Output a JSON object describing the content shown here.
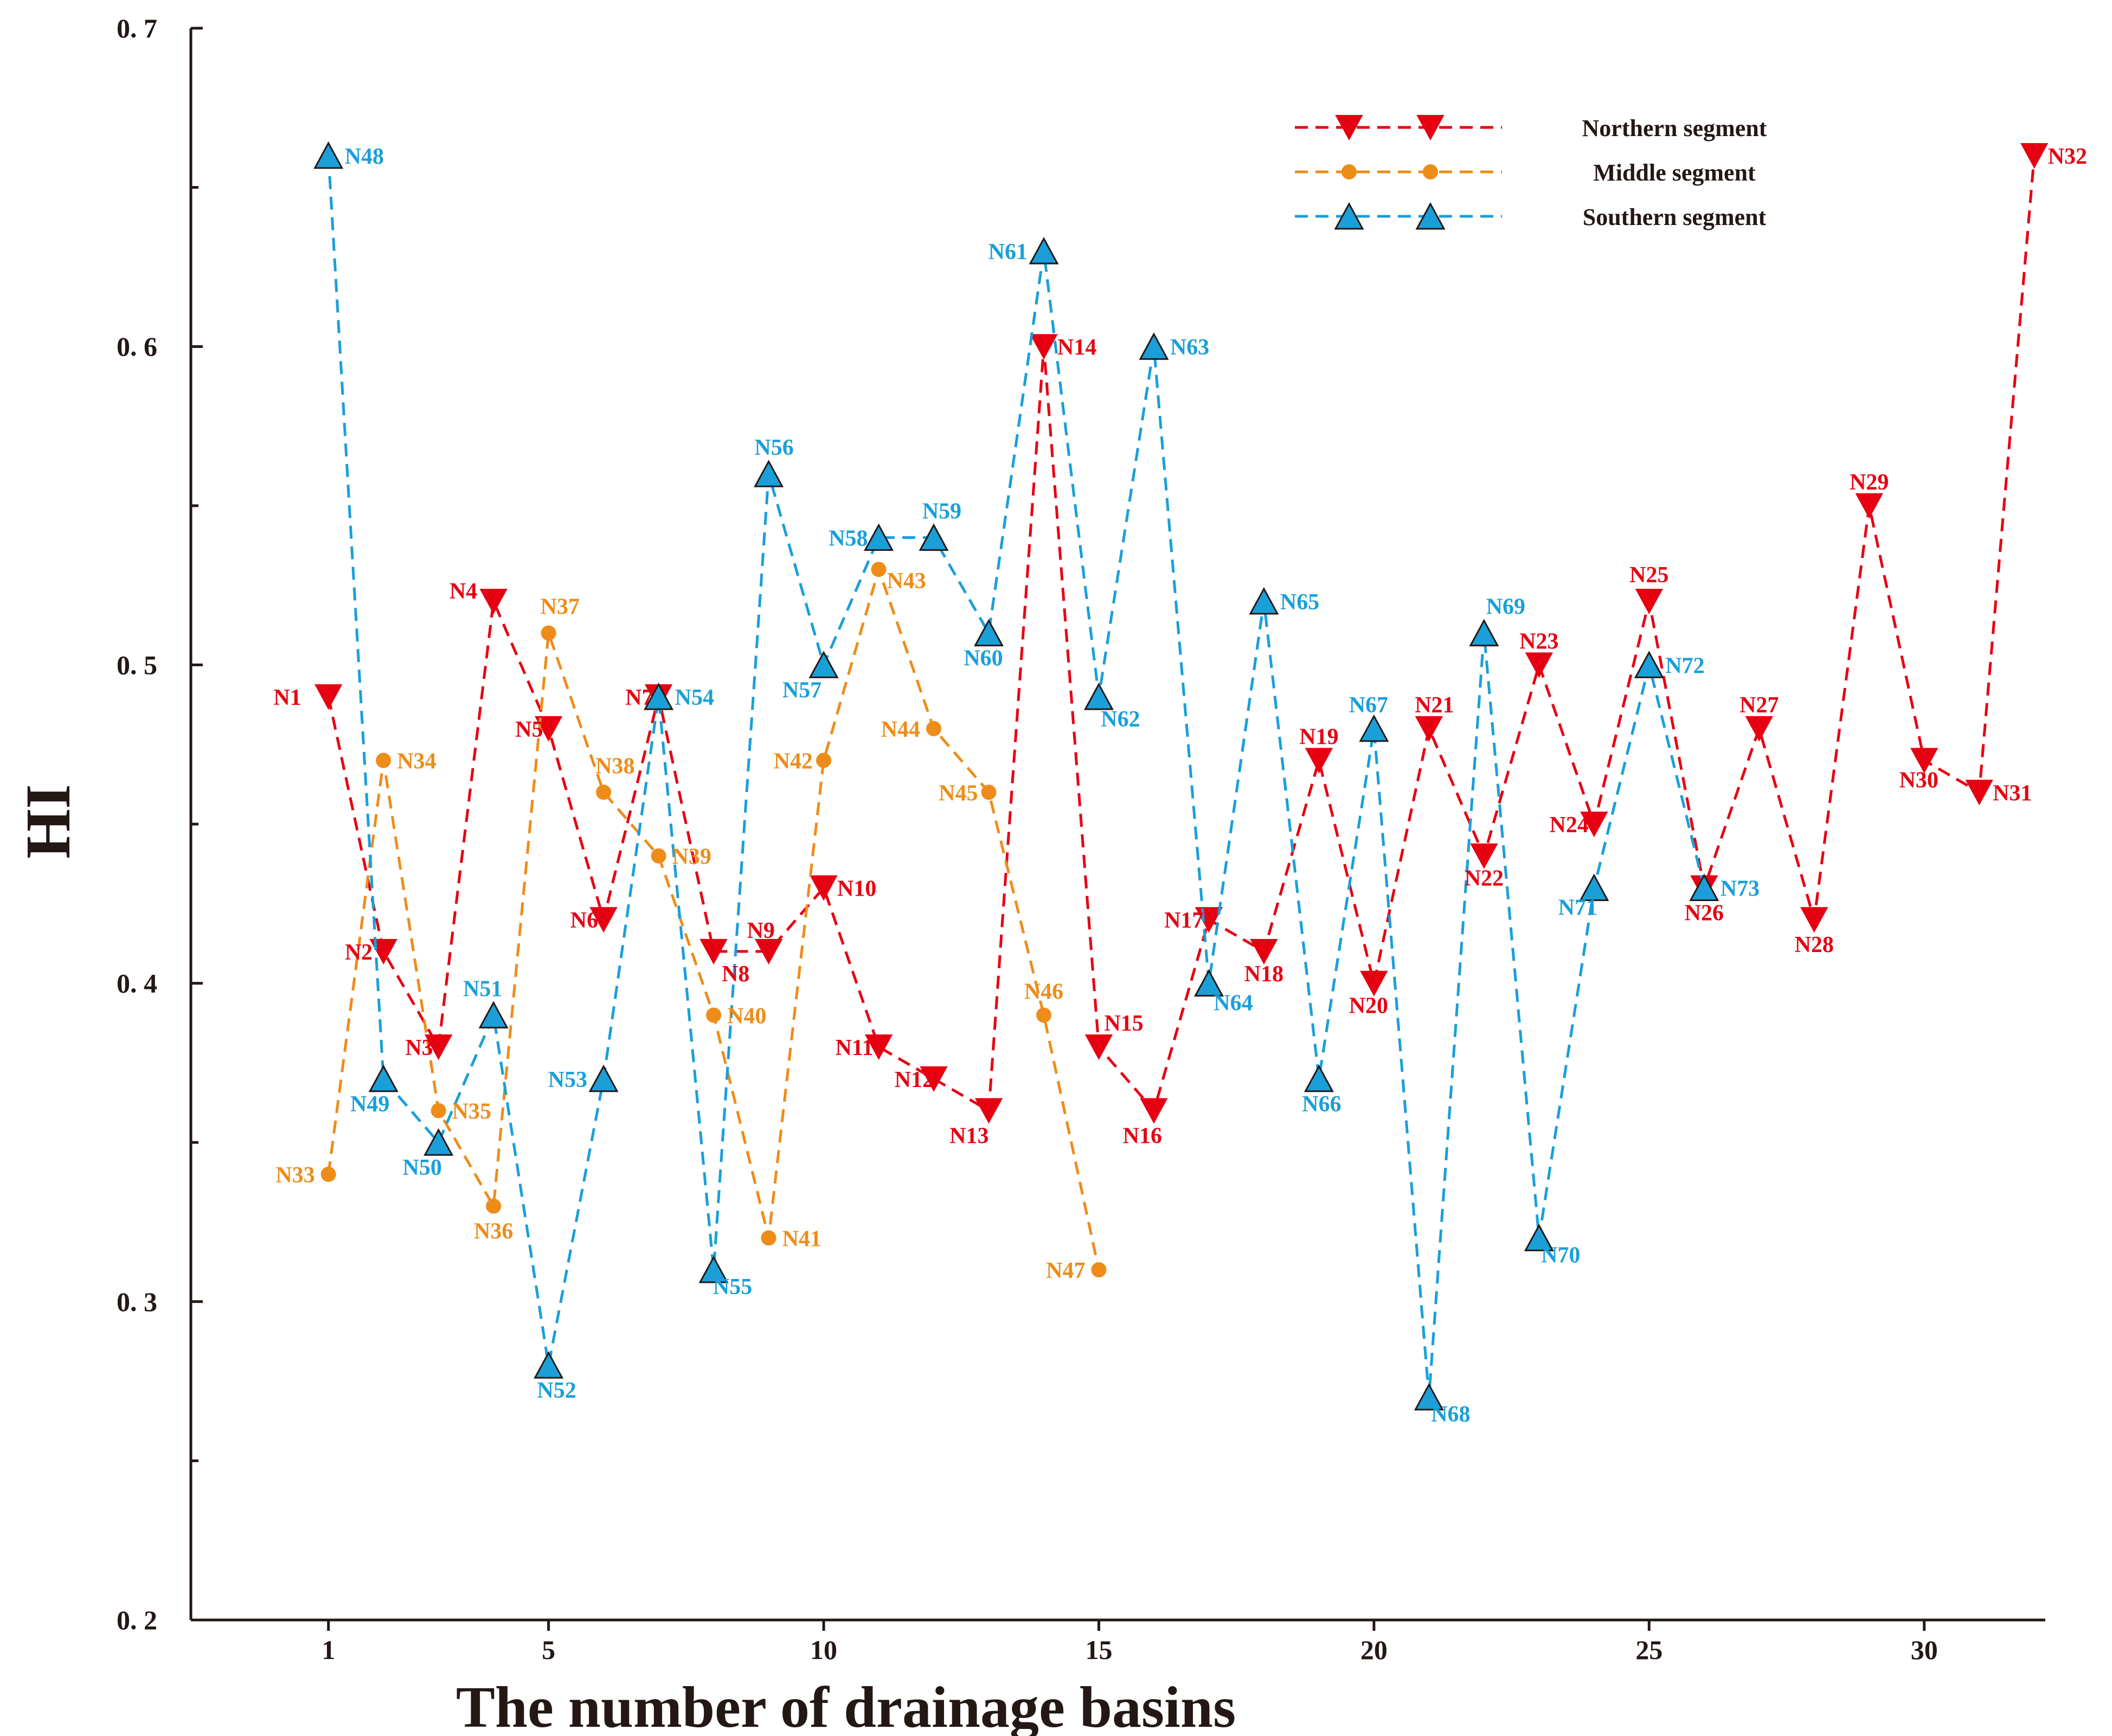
{
  "chart_data": {
    "type": "line",
    "title": "",
    "xlabel": "The number of drainage basins",
    "ylabel": "HI",
    "xlim": [
      -1.5,
      32.2
    ],
    "ylim": [
      0.2,
      0.7
    ],
    "x_ticks": [
      1,
      5,
      10,
      15,
      20,
      25,
      30
    ],
    "x_tick_labels": [
      "1",
      "5",
      "10",
      "15",
      "20",
      "25",
      "30"
    ],
    "y_ticks": [
      0.2,
      0.3,
      0.4,
      0.5,
      0.6,
      0.7
    ],
    "y_tick_labels": [
      "0. 2",
      "0. 3",
      "0. 4",
      "0. 5",
      "0. 6",
      "0. 7"
    ],
    "legend_position": "top-right",
    "series": [
      {
        "name": "Northern segment",
        "color": "#e60012",
        "marker": "triangle-down",
        "points": [
          {
            "label": "N1",
            "x": 1,
            "y": 0.49
          },
          {
            "label": "N2",
            "x": 2,
            "y": 0.41
          },
          {
            "label": "N3",
            "x": 3,
            "y": 0.38
          },
          {
            "label": "N4",
            "x": 4,
            "y": 0.52
          },
          {
            "label": "N5",
            "x": 5,
            "y": 0.48
          },
          {
            "label": "N6",
            "x": 6,
            "y": 0.42
          },
          {
            "label": "N7",
            "x": 7,
            "y": 0.49
          },
          {
            "label": "N8",
            "x": 8,
            "y": 0.41
          },
          {
            "label": "N9",
            "x": 9,
            "y": 0.41
          },
          {
            "label": "N10",
            "x": 10,
            "y": 0.43
          },
          {
            "label": "N11",
            "x": 11,
            "y": 0.38
          },
          {
            "label": "N12",
            "x": 12,
            "y": 0.37
          },
          {
            "label": "N13",
            "x": 13,
            "y": 0.36
          },
          {
            "label": "N14",
            "x": 14,
            "y": 0.6
          },
          {
            "label": "N15",
            "x": 15,
            "y": 0.38
          },
          {
            "label": "N16",
            "x": 16,
            "y": 0.36
          },
          {
            "label": "N17",
            "x": 17,
            "y": 0.42
          },
          {
            "label": "N18",
            "x": 18,
            "y": 0.41
          },
          {
            "label": "N19",
            "x": 19,
            "y": 0.47
          },
          {
            "label": "N20",
            "x": 20,
            "y": 0.4
          },
          {
            "label": "N21",
            "x": 21,
            "y": 0.48
          },
          {
            "label": "N22",
            "x": 22,
            "y": 0.44
          },
          {
            "label": "N23",
            "x": 23,
            "y": 0.5
          },
          {
            "label": "N24",
            "x": 24,
            "y": 0.45
          },
          {
            "label": "N25",
            "x": 25,
            "y": 0.52
          },
          {
            "label": "N26",
            "x": 26,
            "y": 0.43
          },
          {
            "label": "N27",
            "x": 27,
            "y": 0.48
          },
          {
            "label": "N28",
            "x": 28,
            "y": 0.42
          },
          {
            "label": "N29",
            "x": 29,
            "y": 0.55
          },
          {
            "label": "N30",
            "x": 30,
            "y": 0.47
          },
          {
            "label": "N31",
            "x": 31,
            "y": 0.46
          },
          {
            "label": "N32",
            "x": 32,
            "y": 0.66
          }
        ]
      },
      {
        "name": "Middle segment",
        "color": "#ee8c1a",
        "marker": "circle",
        "points": [
          {
            "label": "N33",
            "x": 1,
            "y": 0.34
          },
          {
            "label": "N34",
            "x": 2,
            "y": 0.47
          },
          {
            "label": "N35",
            "x": 3,
            "y": 0.36
          },
          {
            "label": "N36",
            "x": 4,
            "y": 0.33
          },
          {
            "label": "N37",
            "x": 5,
            "y": 0.51
          },
          {
            "label": "N38",
            "x": 6,
            "y": 0.46
          },
          {
            "label": "N39",
            "x": 7,
            "y": 0.44
          },
          {
            "label": "N40",
            "x": 8,
            "y": 0.39
          },
          {
            "label": "N41",
            "x": 9,
            "y": 0.32
          },
          {
            "label": "N42",
            "x": 10,
            "y": 0.47
          },
          {
            "label": "N43",
            "x": 11,
            "y": 0.53
          },
          {
            "label": "N44",
            "x": 12,
            "y": 0.48
          },
          {
            "label": "N45",
            "x": 13,
            "y": 0.46
          },
          {
            "label": "N46",
            "x": 14,
            "y": 0.39
          },
          {
            "label": "N47",
            "x": 15,
            "y": 0.31
          }
        ]
      },
      {
        "name": "Southern segment",
        "color": "#1a9fd9",
        "marker": "triangle-up",
        "points": [
          {
            "label": "N48",
            "x": 1,
            "y": 0.66
          },
          {
            "label": "N49",
            "x": 2,
            "y": 0.37
          },
          {
            "label": "N50",
            "x": 3,
            "y": 0.35
          },
          {
            "label": "N51",
            "x": 4,
            "y": 0.39
          },
          {
            "label": "N52",
            "x": 5,
            "y": 0.28
          },
          {
            "label": "N53",
            "x": 6,
            "y": 0.37
          },
          {
            "label": "N54",
            "x": 7,
            "y": 0.49
          },
          {
            "label": "N55",
            "x": 8,
            "y": 0.31
          },
          {
            "label": "N56",
            "x": 9,
            "y": 0.56
          },
          {
            "label": "N57",
            "x": 10,
            "y": 0.5
          },
          {
            "label": "N58",
            "x": 11,
            "y": 0.54
          },
          {
            "label": "N59",
            "x": 12,
            "y": 0.54
          },
          {
            "label": "N60",
            "x": 13,
            "y": 0.51
          },
          {
            "label": "N61",
            "x": 14,
            "y": 0.63
          },
          {
            "label": "N62",
            "x": 15,
            "y": 0.49
          },
          {
            "label": "N63",
            "x": 16,
            "y": 0.6
          },
          {
            "label": "N64",
            "x": 17,
            "y": 0.4
          },
          {
            "label": "N65",
            "x": 18,
            "y": 0.52
          },
          {
            "label": "N66",
            "x": 19,
            "y": 0.37
          },
          {
            "label": "N67",
            "x": 20,
            "y": 0.48
          },
          {
            "label": "N68",
            "x": 21,
            "y": 0.27
          },
          {
            "label": "N69",
            "x": 22,
            "y": 0.51
          },
          {
            "label": "N70",
            "x": 23,
            "y": 0.32
          },
          {
            "label": "N71",
            "x": 24,
            "y": 0.43
          },
          {
            "label": "N72",
            "x": 25,
            "y": 0.5
          },
          {
            "label": "N73",
            "x": 26,
            "y": 0.43
          }
        ]
      }
    ]
  }
}
